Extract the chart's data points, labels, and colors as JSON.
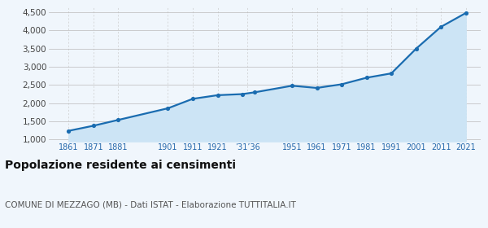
{
  "years": [
    1861,
    1871,
    1881,
    1901,
    1911,
    1921,
    1931,
    1936,
    1951,
    1961,
    1971,
    1981,
    1991,
    2001,
    2011,
    2021
  ],
  "population": [
    1240,
    1380,
    1540,
    1860,
    2120,
    2220,
    2250,
    2300,
    2480,
    2420,
    2520,
    2700,
    2820,
    3500,
    4100,
    4480
  ],
  "x_tick_positions": [
    1861,
    1871,
    1881,
    1901,
    1911,
    1921,
    1933,
    1951,
    1961,
    1971,
    1981,
    1991,
    2001,
    2011,
    2021
  ],
  "x_tick_labels": [
    "1861",
    "1871",
    "1881",
    "1901",
    "1911",
    "1921",
    "’31’36",
    "1951",
    "1961",
    "1971",
    "1981",
    "1991",
    "2001",
    "2011",
    "2021"
  ],
  "ylabel_ticks": [
    1000,
    1500,
    2000,
    2500,
    3000,
    3500,
    4000,
    4500
  ],
  "line_color": "#1a6cb0",
  "fill_color": "#cce4f5",
  "marker_color": "#1a6cb0",
  "background_color": "#f0f6fc",
  "grid_color_h": "#bbbbbb",
  "grid_color_v": "#cccccc",
  "title": "Popolazione residente ai censimenti",
  "subtitle": "COMUNE DI MEZZAGO (MB) - Dati ISTAT - Elaborazione TUTTITALIA.IT",
  "ylim": [
    950,
    4650
  ],
  "xlim": [
    1853,
    2027
  ],
  "title_fontsize": 10,
  "subtitle_fontsize": 7.5
}
